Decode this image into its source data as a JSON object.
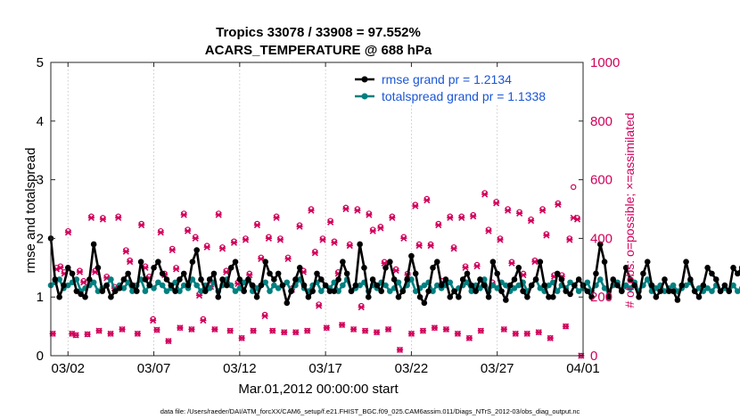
{
  "figure": {
    "title_line1": "Tropics 33078 / 33908 = 97.552%",
    "title_line2": "ACARS_TEMPERATURE @ 688 hPa",
    "xlabel": "Mar.01,2012 00:00:00 start",
    "ylabel_left": "rmse and totalspread",
    "ylabel_right": "# of obs: o=possible; ×=assimilated",
    "footer": "data file: /Users/raeder/DAI/ATM_forcXX/CAM6_setup/f.e21.FHIST_BGC.f09_025.CAM6assim.011/Diags_NTrS_2012-03/obs_diag_output.nc"
  },
  "colors": {
    "rmse": "#000000",
    "spread": "#008080",
    "obs": "#d1005b",
    "legend_text": "#1a56d6"
  },
  "chart_data": {
    "type": "line",
    "x_unit": "days since Mar.01,2012 00:00",
    "xlim": [
      0.5,
      31.5
    ],
    "ylim_left": [
      0,
      5
    ],
    "ylim_right": [
      0,
      1000
    ],
    "x_ticks": [
      {
        "value": 1.5,
        "label": "03/02"
      },
      {
        "value": 6.5,
        "label": "03/07"
      },
      {
        "value": 11.5,
        "label": "03/12"
      },
      {
        "value": 16.5,
        "label": "03/17"
      },
      {
        "value": 21.5,
        "label": "03/22"
      },
      {
        "value": 26.5,
        "label": "03/27"
      },
      {
        "value": 31.5,
        "label": "04/01"
      }
    ],
    "y_ticks_left": [
      {
        "value": 0,
        "label": "0"
      },
      {
        "value": 1,
        "label": "1"
      },
      {
        "value": 2,
        "label": "2"
      },
      {
        "value": 3,
        "label": "3"
      },
      {
        "value": 4,
        "label": "4"
      },
      {
        "value": 5,
        "label": "5"
      }
    ],
    "y_ticks_right": [
      {
        "value": 0,
        "label": "0"
      },
      {
        "value": 200,
        "label": "200"
      },
      {
        "value": 400,
        "label": "400"
      },
      {
        "value": 600,
        "label": "600"
      },
      {
        "value": 800,
        "label": "800"
      },
      {
        "value": 1000,
        "label": "1000"
      }
    ],
    "x_start": 0.5,
    "x_step": 0.25,
    "series": [
      {
        "name": "rmse grand pr = 1.2134",
        "axis": "left",
        "values": [
          2.0,
          1.3,
          1.0,
          1.2,
          1.5,
          1.4,
          1.1,
          1.05,
          1.0,
          1.3,
          1.9,
          1.5,
          1.1,
          1.2,
          1.0,
          1.1,
          1.15,
          1.3,
          1.4,
          1.2,
          1.1,
          1.6,
          1.3,
          1.2,
          1.5,
          1.6,
          1.4,
          1.3,
          1.2,
          1.1,
          1.3,
          1.4,
          1.2,
          1.6,
          1.8,
          1.3,
          1.1,
          1.3,
          1.4,
          1.0,
          1.3,
          1.2,
          1.5,
          1.6,
          1.3,
          1.1,
          1.3,
          1.2,
          1.0,
          1.2,
          1.6,
          1.4,
          1.3,
          1.4,
          1.2,
          0.9,
          1.1,
          1.3,
          1.5,
          1.2,
          1.0,
          1.1,
          1.4,
          1.3,
          1.2,
          1.1,
          1.1,
          1.3,
          1.6,
          1.4,
          1.1,
          1.2,
          1.9,
          1.5,
          1.0,
          1.3,
          1.2,
          1.1,
          1.5,
          1.6,
          1.3,
          1.0,
          1.1,
          1.3,
          1.7,
          1.4,
          1.0,
          0.9,
          1.1,
          1.5,
          1.6,
          1.2,
          1.3,
          1.0,
          1.1,
          1.0,
          1.3,
          1.4,
          1.2,
          1.1,
          1.3,
          1.2,
          1.0,
          1.6,
          1.4,
          1.1,
          0.95,
          1.2,
          1.3,
          1.5,
          1.1,
          1.0,
          1.2,
          1.3,
          1.6,
          1.2,
          1.0,
          1.0,
          1.4,
          1.3,
          1.1,
          1.05,
          1.2,
          1.3,
          1.2,
          1.1,
          1.0,
          1.4,
          1.9,
          1.6,
          1.0,
          1.3,
          1.2,
          1.1,
          1.5,
          1.3,
          1.2,
          1.0,
          1.4,
          1.6,
          1.2,
          1.0,
          1.1,
          1.3,
          1.1,
          1.1,
          0.95,
          1.2,
          1.6,
          1.3,
          1.1,
          1.0,
          1.2,
          1.5,
          1.4,
          1.3,
          1.1,
          1.2,
          1.1,
          1.5,
          1.4,
          1.5,
          1.3,
          1.2,
          1.1,
          1.4,
          1.3,
          1.2,
          1.6,
          1.4,
          1.1,
          1.1
        ]
      },
      {
        "name": "totalspread grand pr = 1.1338",
        "axis": "left",
        "values": [
          1.2,
          1.25,
          1.3,
          1.15,
          1.2,
          1.25,
          1.3,
          1.1,
          1.15,
          1.2,
          1.25,
          1.1,
          1.15,
          1.2,
          1.3,
          1.1,
          1.2,
          1.15,
          1.25,
          1.1,
          1.2,
          1.3,
          1.1,
          1.2,
          1.15,
          1.25,
          1.2,
          1.1,
          1.15,
          1.25,
          1.1,
          1.2,
          1.15,
          1.3,
          1.2,
          1.1,
          1.2,
          1.15,
          1.25,
          1.1,
          1.2,
          1.3,
          1.2,
          1.1,
          1.15,
          1.25,
          1.3,
          1.1,
          1.15,
          1.2,
          1.25,
          1.1,
          1.2,
          1.15,
          1.2,
          1.25,
          1.1,
          1.2,
          1.3,
          1.15,
          1.1,
          1.2,
          1.25,
          1.1,
          1.2,
          1.15,
          1.25,
          1.1,
          1.2,
          1.3,
          1.1,
          1.15,
          1.2,
          1.25,
          1.1,
          1.2,
          1.15,
          1.25,
          1.2,
          1.1,
          1.15,
          1.25,
          1.1,
          1.2,
          1.3,
          1.1,
          1.15,
          1.2,
          1.25,
          1.1,
          1.2,
          1.15,
          1.2,
          1.25,
          1.1,
          1.15,
          1.2,
          1.25,
          1.1,
          1.2,
          1.15,
          1.3,
          1.1,
          1.2,
          1.15,
          1.25,
          1.2,
          1.1,
          1.15,
          1.2,
          1.25,
          1.1,
          1.2,
          1.3,
          1.15,
          1.1,
          1.2,
          1.25,
          1.1,
          1.2,
          1.15,
          1.25,
          1.2,
          1.1,
          1.15,
          1.25,
          1.1,
          1.2,
          1.3,
          1.15,
          1.1,
          1.2,
          1.25,
          1.1,
          1.2,
          1.15,
          1.25,
          1.1,
          1.2,
          1.3,
          1.1,
          1.15,
          1.2,
          1.1,
          1.15,
          1.2,
          1.1,
          1.15,
          1.2,
          1.25,
          1.1,
          1.15,
          1.1,
          1.15,
          1.1,
          1.2,
          1.1,
          1.15,
          1.1,
          1.2,
          1.1,
          1.15,
          1.1,
          1.1,
          1.15,
          1.1,
          1.1,
          1.15,
          1.1,
          1.1,
          1.1,
          1.1
        ]
      },
      {
        "name": "obs possible",
        "axis": "right",
        "marker": "circle",
        "values": [
          75,
          300,
          305,
          285,
          425,
          75,
          70,
          290,
          255,
          73,
          475,
          290,
          85,
          470,
          270,
          75,
          235,
          475,
          90,
          360,
          325,
          240,
          75,
          450,
          305,
          270,
          125,
          88,
          425,
          280,
          50,
          365,
          300,
          95,
          485,
          430,
          90,
          405,
          210,
          125,
          375,
          240,
          90,
          485,
          370,
          290,
          85,
          390,
          250,
          60,
          400,
          280,
          85,
          450,
          335,
          140,
          405,
          85,
          475,
          400,
          80,
          335,
          230,
          80,
          445,
          290,
          85,
          500,
          355,
          175,
          400,
          95,
          460,
          390,
          285,
          105,
          505,
          380,
          90,
          500,
          170,
          85,
          485,
          430,
          80,
          440,
          320,
          90,
          475,
          295,
          20,
          405,
          280,
          75,
          515,
          380,
          85,
          535,
          380,
          95,
          450,
          255,
          90,
          475,
          370,
          75,
          475,
          305,
          60,
          480,
          310,
          85,
          555,
          430,
          250,
          525,
          400,
          90,
          500,
          320,
          75,
          490,
          280,
          75,
          465,
          325,
          80,
          500,
          415,
          60,
          275,
          520,
          275,
          100,
          400,
          575,
          470,
          0
        ]
      },
      {
        "name": "obs assimilated",
        "axis": "right",
        "marker": "cross",
        "values": [
          75,
          295,
          300,
          280,
          420,
          75,
          70,
          285,
          250,
          73,
          470,
          285,
          85,
          465,
          265,
          75,
          230,
          470,
          90,
          355,
          320,
          235,
          75,
          445,
          300,
          265,
          120,
          88,
          420,
          275,
          50,
          360,
          295,
          95,
          480,
          425,
          90,
          400,
          205,
          120,
          370,
          235,
          90,
          480,
          365,
          285,
          85,
          385,
          245,
          60,
          395,
          275,
          85,
          445,
          330,
          135,
          400,
          85,
          470,
          395,
          80,
          330,
          225,
          80,
          440,
          285,
          85,
          495,
          350,
          170,
          395,
          95,
          455,
          385,
          280,
          105,
          500,
          375,
          90,
          495,
          165,
          85,
          480,
          425,
          80,
          435,
          315,
          90,
          470,
          290,
          20,
          400,
          275,
          75,
          510,
          375,
          85,
          530,
          375,
          95,
          445,
          250,
          90,
          470,
          365,
          75,
          470,
          300,
          60,
          475,
          305,
          85,
          550,
          425,
          245,
          520,
          395,
          90,
          495,
          315,
          75,
          485,
          275,
          75,
          460,
          320,
          80,
          495,
          410,
          60,
          270,
          515,
          270,
          100,
          395,
          470,
          465,
          0
        ]
      }
    ],
    "legend_placement": "top-right"
  }
}
